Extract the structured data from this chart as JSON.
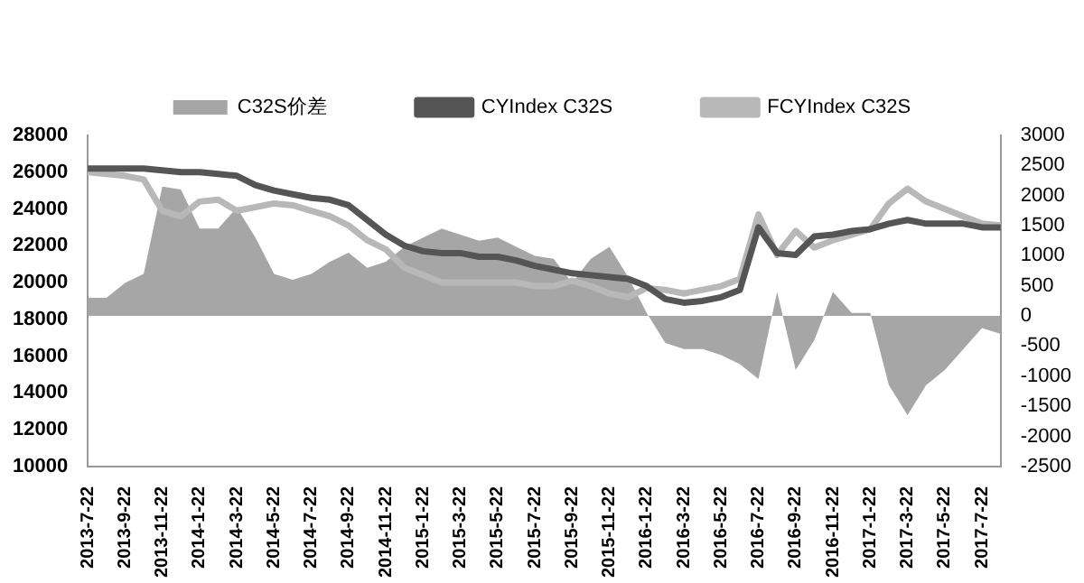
{
  "chart_data": {
    "type": "line",
    "categories": [
      "2013-7-22",
      null,
      "2013-9-22",
      null,
      "2013-11-22",
      null,
      "2014-1-22",
      null,
      "2014-3-22",
      null,
      "2014-5-22",
      null,
      "2014-7-22",
      null,
      "2014-9-22",
      null,
      "2014-11-22",
      null,
      "2015-1-22",
      null,
      "2015-3-22",
      null,
      "2015-5-22",
      null,
      "2015-7-22",
      null,
      "2015-9-22",
      null,
      "2015-11-22",
      null,
      "2016-1-22",
      null,
      "2016-3-22",
      null,
      "2016-5-22",
      null,
      "2016-7-22",
      null,
      "2016-9-22",
      null,
      "2016-11-22",
      null,
      "2017-1-22",
      null,
      "2017-3-22",
      null,
      "2017-5-22",
      null,
      "2017-7-22",
      null
    ],
    "series": [
      {
        "name": "C32S价差",
        "type": "area",
        "axis": "y2",
        "color": "#a6a6a6",
        "values": [
          300,
          300,
          550,
          700,
          2150,
          2100,
          1450,
          1450,
          1800,
          1300,
          700,
          600,
          700,
          900,
          1050,
          800,
          900,
          1150,
          1300,
          1450,
          1350,
          1250,
          1300,
          1150,
          1000,
          950,
          550,
          950,
          1150,
          650,
          50,
          -450,
          -550,
          -550,
          -650,
          -800,
          -1050,
          400,
          -900,
          -400,
          400,
          50,
          50,
          -1150,
          -1650,
          -1150,
          -900,
          -550,
          -200,
          -300
        ]
      },
      {
        "name": "CYIndex C32S",
        "type": "line",
        "color": "#555555",
        "values": [
          26200,
          26200,
          26200,
          26200,
          26100,
          26000,
          26000,
          25900,
          25800,
          25300,
          25000,
          24800,
          24600,
          24500,
          24200,
          23400,
          22600,
          22000,
          21700,
          21600,
          21600,
          21400,
          21400,
          21200,
          20900,
          20700,
          20500,
          20400,
          20300,
          20200,
          19800,
          19100,
          18900,
          19000,
          19200,
          19600,
          23000,
          21600,
          21500,
          22500,
          22600,
          22800,
          22900,
          23200,
          23400,
          23200,
          23200,
          23200,
          23000,
          23000
        ]
      },
      {
        "name": "FCYIndex C32S",
        "type": "line",
        "color": "#b8b8b8",
        "values": [
          26000,
          25900,
          25800,
          25600,
          23900,
          23600,
          24400,
          24500,
          23900,
          24100,
          24300,
          24200,
          23900,
          23600,
          23100,
          22300,
          21800,
          20800,
          20400,
          20000,
          20000,
          20000,
          20000,
          20000,
          19800,
          19800,
          20100,
          19800,
          19400,
          19200,
          19700,
          19600,
          19400,
          19600,
          19800,
          20200,
          23700,
          21500,
          22800,
          21900,
          22300,
          22600,
          22900,
          24300,
          25100,
          24400,
          24000,
          23600,
          23200,
          23100
        ]
      }
    ],
    "ylim": [
      10000,
      28000
    ],
    "yticks": [
      10000,
      12000,
      14000,
      16000,
      18000,
      20000,
      22000,
      24000,
      26000,
      28000
    ],
    "y2lim": [
      -2500,
      3000
    ],
    "y2ticks": [
      -2500,
      -2000,
      -1500,
      -1000,
      -500,
      0,
      500,
      1000,
      1500,
      2000,
      2500,
      3000
    ],
    "grid": false,
    "legend": "top",
    "marker": "none"
  }
}
